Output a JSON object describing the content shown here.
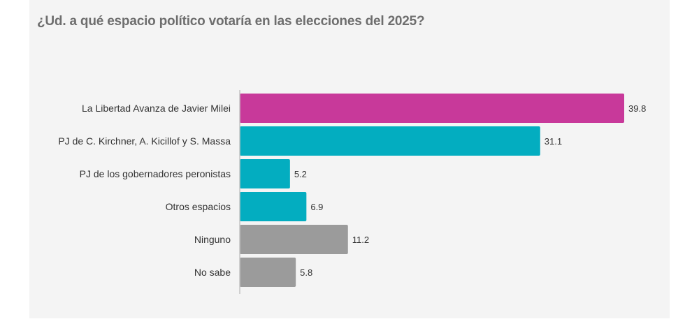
{
  "chart_data": {
    "type": "bar",
    "orientation": "horizontal",
    "title": "¿Ud. a qué espacio político votaría en las elecciones del 2025?",
    "xlabel": "",
    "ylabel": "",
    "grid": false,
    "legend": null,
    "xlim": [
      0,
      40
    ],
    "categories": [
      "La Libertad Avanza de Javier Milei",
      "PJ de C. Kirchner, A. Kicillof y S. Massa",
      "PJ de los gobernadores peronistas",
      "Otros espacios",
      "Ninguno",
      "No sabe"
    ],
    "values": [
      39.8,
      31.1,
      5.2,
      6.9,
      11.2,
      5.8
    ],
    "value_labels": [
      "39.8",
      "31.1",
      "5.2",
      "6.9",
      "11.2",
      "5.8"
    ],
    "bar_colors": [
      "#c8399a",
      "#03adc0",
      "#03adc0",
      "#03adc0",
      "#9b9b9b",
      "#9b9b9b"
    ]
  }
}
